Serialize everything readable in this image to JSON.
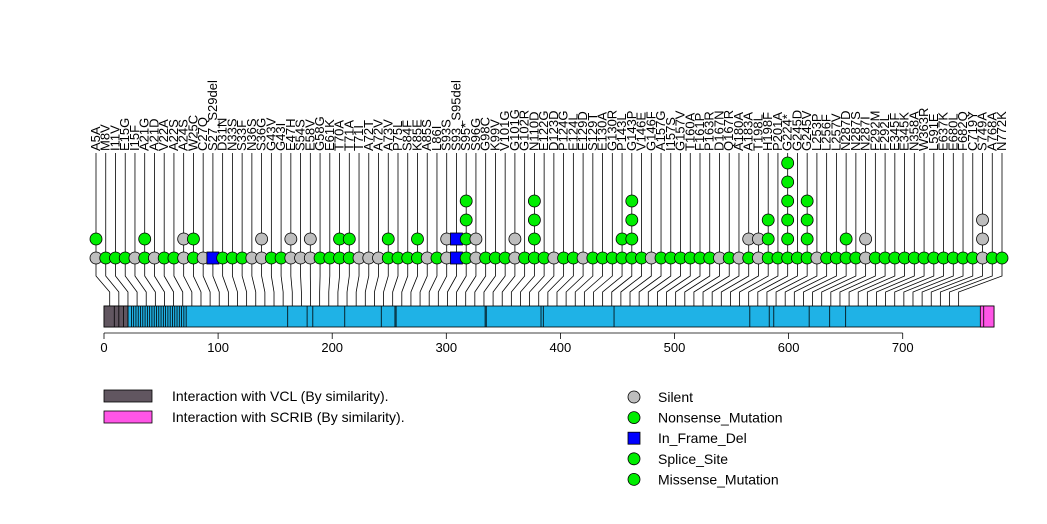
{
  "chart_data": {
    "type": "lollipop",
    "x_axis": {
      "min": 0,
      "max": 780,
      "ticks": [
        0,
        100,
        200,
        300,
        400,
        500,
        600,
        700
      ]
    },
    "protein": {
      "length": 780,
      "base_color": "#1fb2e6",
      "domains": [
        {
          "name": "Interaction with VCL (By similarity).",
          "start": 1,
          "end": 21,
          "color": "#615660"
        },
        {
          "name": "Interaction with SCRIB (By similarity).",
          "start": 769,
          "end": 780,
          "color": "#ff55e6"
        }
      ],
      "segment_boundaries": [
        9,
        13,
        17,
        21,
        24,
        26,
        28,
        30,
        32,
        34,
        36,
        38,
        40,
        42,
        44,
        46,
        48,
        50,
        52,
        54,
        56,
        58,
        60,
        62,
        64,
        66,
        68,
        70,
        72,
        161,
        178,
        183,
        211,
        243,
        255,
        256,
        334,
        335,
        383,
        385,
        447,
        566,
        583,
        587,
        618,
        636,
        650,
        771
      ]
    },
    "lollipop_x": [
      5,
      13,
      21,
      29,
      37,
      45,
      53,
      61,
      69,
      77,
      85,
      93,
      101,
      109,
      117,
      125,
      133,
      141,
      149,
      157,
      165,
      173,
      181,
      189,
      197,
      205,
      213,
      221,
      229,
      237,
      245,
      253,
      261,
      269,
      277,
      285,
      293,
      301,
      309,
      317,
      325,
      333,
      341,
      349,
      357,
      365,
      373,
      381,
      389,
      397,
      405,
      413,
      421,
      429,
      437,
      445,
      453,
      461,
      469,
      477,
      485,
      493,
      501,
      509,
      517,
      525,
      533,
      541,
      549,
      557,
      565,
      573,
      581,
      589,
      597,
      605,
      613,
      621,
      629,
      637,
      645,
      653,
      661,
      669,
      677,
      685,
      693,
      701,
      709,
      717,
      725,
      733,
      741,
      749,
      757,
      765,
      773,
      781
    ],
    "mutations": [
      {
        "label": "A5A",
        "base": "silent",
        "stack": [
          "missense"
        ]
      },
      {
        "label": "M8V",
        "base": "missense",
        "stack": []
      },
      {
        "label": "I11V",
        "base": "missense",
        "stack": []
      },
      {
        "label": "E15G",
        "base": "missense",
        "stack": []
      },
      {
        "label": "I15F",
        "base": "silent",
        "stack": []
      },
      {
        "label": "A21G",
        "base": "missense",
        "stack": [
          "missense"
        ]
      },
      {
        "label": "A21D",
        "base": "silent",
        "stack": []
      },
      {
        "label": "V22A",
        "base": "missense",
        "stack": []
      },
      {
        "label": "A22S",
        "base": "missense",
        "stack": []
      },
      {
        "label": "A24S",
        "base": "silent",
        "stack": [
          "silent"
        ]
      },
      {
        "label": "W25C",
        "base": "missense",
        "stack": [
          "missense"
        ]
      },
      {
        "label": "C27Q",
        "base": "silent",
        "stack": []
      },
      {
        "label": "S27_S29del",
        "base": "in_frame_del",
        "stack": []
      },
      {
        "label": "D31N",
        "base": "missense",
        "stack": []
      },
      {
        "label": "N33S",
        "base": "missense",
        "stack": []
      },
      {
        "label": "S33F",
        "base": "missense",
        "stack": []
      },
      {
        "label": "N36S",
        "base": "silent",
        "stack": []
      },
      {
        "label": "S36G",
        "base": "silent",
        "stack": [
          "silent"
        ]
      },
      {
        "label": "G43V",
        "base": "missense",
        "stack": []
      },
      {
        "label": "G43I",
        "base": "missense",
        "stack": []
      },
      {
        "label": "E47H",
        "base": "silent",
        "stack": [
          "silent"
        ]
      },
      {
        "label": "S54S",
        "base": "silent",
        "stack": []
      },
      {
        "label": "E58V",
        "base": "silent",
        "stack": [
          "silent"
        ]
      },
      {
        "label": "G58G",
        "base": "missense",
        "stack": []
      },
      {
        "label": "E61K",
        "base": "missense",
        "stack": []
      },
      {
        "label": "T70A",
        "base": "missense",
        "stack": [
          "missense"
        ]
      },
      {
        "label": "T71A",
        "base": "missense",
        "stack": [
          "missense"
        ]
      },
      {
        "label": "T71I",
        "base": "silent",
        "stack": []
      },
      {
        "label": "A72T",
        "base": "silent",
        "stack": []
      },
      {
        "label": "A72V",
        "base": "silent",
        "stack": []
      },
      {
        "label": "A73V",
        "base": "missense",
        "stack": [
          "missense"
        ]
      },
      {
        "label": "P75L",
        "base": "missense",
        "stack": []
      },
      {
        "label": "S84F",
        "base": "missense",
        "stack": []
      },
      {
        "label": "K85E",
        "base": "missense",
        "stack": [
          "missense"
        ]
      },
      {
        "label": "A85S",
        "base": "silent",
        "stack": []
      },
      {
        "label": "L86I",
        "base": "missense",
        "stack": []
      },
      {
        "label": "S93S",
        "base": "silent",
        "stack": [
          "silent"
        ]
      },
      {
        "label": "S93_S95del",
        "base": "in_frame_del",
        "stack": [
          "in_frame_del"
        ]
      },
      {
        "label": "S95*",
        "base": "missense",
        "stack": [
          "missense",
          "missense",
          "missense"
        ]
      },
      {
        "label": "S96G",
        "base": "silent",
        "stack": [
          "silent"
        ]
      },
      {
        "label": "G98C",
        "base": "missense",
        "stack": []
      },
      {
        "label": "K99V",
        "base": "missense",
        "stack": []
      },
      {
        "label": "V101G",
        "base": "missense",
        "stack": []
      },
      {
        "label": "G101G",
        "base": "silent",
        "stack": [
          "silent"
        ]
      },
      {
        "label": "G102R",
        "base": "missense",
        "stack": []
      },
      {
        "label": "N110D",
        "base": "missense",
        "stack": [
          "missense",
          "missense",
          "missense"
        ]
      },
      {
        "label": "E122G",
        "base": "missense",
        "stack": []
      },
      {
        "label": "D123D",
        "base": "silent",
        "stack": []
      },
      {
        "label": "P124G",
        "base": "missense",
        "stack": []
      },
      {
        "label": "E124L",
        "base": "missense",
        "stack": []
      },
      {
        "label": "E129D",
        "base": "silent",
        "stack": []
      },
      {
        "label": "S129T",
        "base": "missense",
        "stack": []
      },
      {
        "label": "E130A",
        "base": "missense",
        "stack": []
      },
      {
        "label": "G130R",
        "base": "missense",
        "stack": []
      },
      {
        "label": "P143L",
        "base": "missense",
        "stack": [
          "missense"
        ]
      },
      {
        "label": "G143P",
        "base": "missense",
        "stack": [
          "missense",
          "missense",
          "missense"
        ]
      },
      {
        "label": "V146E",
        "base": "missense",
        "stack": []
      },
      {
        "label": "G146F",
        "base": "silent",
        "stack": []
      },
      {
        "label": "A157G",
        "base": "missense",
        "stack": []
      },
      {
        "label": "I157S",
        "base": "missense",
        "stack": []
      },
      {
        "label": "G157V",
        "base": "missense",
        "stack": []
      },
      {
        "label": "T160A",
        "base": "missense",
        "stack": []
      },
      {
        "label": "F161P",
        "base": "missense",
        "stack": []
      },
      {
        "label": "P163R",
        "base": "missense",
        "stack": []
      },
      {
        "label": "D167N",
        "base": "silent",
        "stack": []
      },
      {
        "label": "Q167R",
        "base": "missense",
        "stack": []
      },
      {
        "label": "A180A",
        "base": "silent",
        "stack": []
      },
      {
        "label": "A183A",
        "base": "missense",
        "stack": [
          "silent"
        ]
      },
      {
        "label": "T198L",
        "base": "silent",
        "stack": [
          "silent"
        ]
      },
      {
        "label": "H198F",
        "base": "missense",
        "stack": [
          "missense",
          "missense"
        ]
      },
      {
        "label": "P201A",
        "base": "missense",
        "stack": []
      },
      {
        "label": "G224*",
        "base": "missense",
        "stack": [
          "missense",
          "missense",
          "missense",
          "missense",
          "missense"
        ]
      },
      {
        "label": "G245D",
        "base": "missense",
        "stack": []
      },
      {
        "label": "G245V",
        "base": "missense",
        "stack": [
          "missense",
          "missense",
          "missense"
        ]
      },
      {
        "label": "L253P",
        "base": "silent",
        "stack": []
      },
      {
        "label": "L256F",
        "base": "missense",
        "stack": []
      },
      {
        "label": "L257V",
        "base": "missense",
        "stack": []
      },
      {
        "label": "N287D",
        "base": "missense",
        "stack": [
          "missense"
        ]
      },
      {
        "label": "N287S",
        "base": "missense",
        "stack": []
      },
      {
        "label": "N287I",
        "base": "silent",
        "stack": [
          "silent"
        ]
      },
      {
        "label": "F292M",
        "base": "missense",
        "stack": []
      },
      {
        "label": "F292L",
        "base": "missense",
        "stack": []
      },
      {
        "label": "E345F",
        "base": "missense",
        "stack": []
      },
      {
        "label": "E345K",
        "base": "missense",
        "stack": []
      },
      {
        "label": "N358A",
        "base": "missense",
        "stack": []
      },
      {
        "label": "W363R",
        "base": "missense",
        "stack": []
      },
      {
        "label": "L591E",
        "base": "missense",
        "stack": []
      },
      {
        "label": "E637K",
        "base": "missense",
        "stack": []
      },
      {
        "label": "E680L",
        "base": "missense",
        "stack": []
      },
      {
        "label": "F682Q",
        "base": "missense",
        "stack": []
      },
      {
        "label": "C719Y",
        "base": "missense",
        "stack": []
      },
      {
        "label": "S749A",
        "base": "silent",
        "stack": [
          "silent",
          "silent"
        ]
      },
      {
        "label": "A768A",
        "base": "missense",
        "stack": []
      },
      {
        "label": "N772K",
        "base": "missense",
        "stack": []
      }
    ],
    "mutation_types": {
      "silent": {
        "label": "Silent",
        "color": "#bebebe",
        "shape": "circle"
      },
      "nonsense": {
        "label": "Nonsense_Mutation",
        "color": "#00ee00",
        "shape": "circle"
      },
      "in_frame_del": {
        "label": "In_Frame_Del",
        "color": "#0000ff",
        "shape": "square"
      },
      "splice": {
        "label": "Splice_Site",
        "color": "#00ee00",
        "shape": "circle"
      },
      "missense": {
        "label": "Missense_Mutation",
        "color": "#00ee00",
        "shape": "circle"
      }
    },
    "legend_order": [
      "silent",
      "nonsense",
      "in_frame_del",
      "splice",
      "missense"
    ]
  }
}
